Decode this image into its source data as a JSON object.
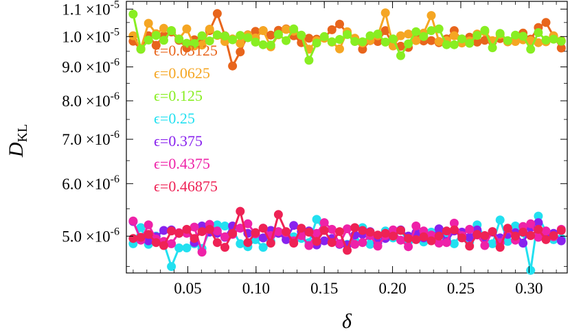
{
  "chart_data": {
    "type": "line",
    "title": "",
    "xlabel": "δ",
    "ylabel": "D",
    "ylabel_sub": "KL",
    "yscale": "log",
    "xlim": [
      0.005,
      0.328
    ],
    "ylim": [
      4.4e-06,
      1.13e-05
    ],
    "x_ticks": [
      {
        "value": 0.05,
        "label": "0.05"
      },
      {
        "value": 0.1,
        "label": "0.10"
      },
      {
        "value": 0.15,
        "label": "0.15"
      },
      {
        "value": 0.2,
        "label": "0.20"
      },
      {
        "value": 0.25,
        "label": "0.25"
      },
      {
        "value": 0.3,
        "label": "0.30"
      }
    ],
    "y_ticks": [
      {
        "value": 5e-06,
        "mantissa": "5.0",
        "exp": "-6"
      },
      {
        "value": 6e-06,
        "mantissa": "6.0",
        "exp": "-6"
      },
      {
        "value": 7e-06,
        "mantissa": "7.0",
        "exp": "-6"
      },
      {
        "value": 8e-06,
        "mantissa": "8.0",
        "exp": "-6"
      },
      {
        "value": 9e-06,
        "mantissa": "9.0",
        "exp": "-6"
      },
      {
        "value": 1e-05,
        "mantissa": "1.0",
        "exp": "-5"
      },
      {
        "value": 1.1e-05,
        "mantissa": "1.1",
        "exp": "-5"
      }
    ],
    "times_sign": "×10",
    "legend_position": "left, upper-middle",
    "x": [
      0.01,
      0.0156,
      0.0212,
      0.0268,
      0.0324,
      0.038,
      0.0436,
      0.0492,
      0.0548,
      0.0604,
      0.066,
      0.0716,
      0.0772,
      0.0828,
      0.0884,
      0.094,
      0.0996,
      0.1052,
      0.1108,
      0.1164,
      0.122,
      0.1276,
      0.1332,
      0.1388,
      0.1444,
      0.15,
      0.1556,
      0.1612,
      0.1668,
      0.1724,
      0.178,
      0.1836,
      0.1892,
      0.1948,
      0.2004,
      0.206,
      0.2116,
      0.2172,
      0.2228,
      0.2284,
      0.234,
      0.2396,
      0.2452,
      0.2508,
      0.2564,
      0.262,
      0.2676,
      0.2732,
      0.2788,
      0.2844,
      0.29,
      0.2956,
      0.3012,
      0.3068,
      0.3124,
      0.318,
      0.3236
    ],
    "series": [
      {
        "name": "ϵ=0.03125",
        "color": "#e8651c",
        "values": [
          9.84e-06,
          9.57e-06,
          1.003e-05,
          9.7e-06,
          1.003e-05,
          1.016e-05,
          9.87e-06,
          9.61e-06,
          9.89e-06,
          9.88e-06,
          1.021e-05,
          1.083e-05,
          1.003e-05,
          9.03e-06,
          9.48e-06,
          1.006e-05,
          1.018e-05,
          1.021e-05,
          1.005e-05,
          1.022e-05,
          1.027e-05,
          1.003e-05,
          9.79e-06,
          9.94e-06,
          9.91e-06,
          9.97e-06,
          1.024e-05,
          1.044e-05,
          1.012e-05,
          9.93e-06,
          9.57e-06,
          9.86e-06,
          9.83e-06,
          1.021e-05,
          9.71e-06,
          9.67e-06,
          9.63e-06,
          9.95e-06,
          9.85e-06,
          9.86e-06,
          9.79e-06,
          9.92e-06,
          1.021e-05,
          9.88e-06,
          9.98e-06,
          9.81e-06,
          9.87e-06,
          9.82e-06,
          9.93e-06,
          9.82e-06,
          9.85e-06,
          1.012e-05,
          9.91e-06,
          1.032e-05,
          1.05e-05,
          1.001e-05,
          9.61e-06
        ]
      },
      {
        "name": "ϵ=0.0625",
        "color": "#f5a623",
        "values": [
          1.003e-05,
          9.59e-06,
          1.047e-05,
          1.01e-05,
          1.029e-05,
          1.021e-05,
          9.92e-06,
          1.027e-05,
          9.68e-06,
          9.71e-06,
          1.026e-05,
          1.004e-05,
          9.83e-06,
          9.92e-06,
          9.77e-06,
          1.005e-05,
          9.95e-06,
          1.021e-05,
          9.65e-06,
          1.006e-05,
          1.025e-05,
          1.019e-05,
          1.004e-05,
          9.57e-06,
          9.86e-06,
          9.94e-06,
          9.81e-06,
          9.58e-06,
          1.017e-05,
          9.94e-06,
          9.78e-06,
          9.87e-06,
          1.003e-05,
          1.086e-05,
          9.68e-06,
          1.003e-05,
          1.009e-05,
          9.86e-06,
          1.012e-05,
          1.076e-05,
          9.83e-06,
          9.86e-06,
          1.003e-05,
          9.78e-06,
          9.85e-06,
          1.009e-05,
          1.017e-05,
          9.86e-06,
          1.007e-05,
          9.82e-06,
          9.83e-06,
          9.89e-06,
          9.86e-06,
          9.79e-06,
          9.82e-06,
          1.003e-05,
          9.86e-06
        ]
      },
      {
        "name": "ϵ=0.125",
        "color": "#88ee22",
        "values": [
          1.081e-05,
          9.57e-06,
          9.88e-06,
          1.004e-05,
          9.87e-06,
          1.021e-05,
          9.91e-06,
          9.77e-06,
          9.76e-06,
          1.003e-05,
          9.85e-06,
          1.006e-05,
          1.002e-05,
          9.89e-06,
          1.004e-05,
          9.96e-06,
          9.81e-06,
          9.72e-06,
          9.71e-06,
          1.008e-05,
          9.86e-06,
          1.027e-05,
          1.005e-05,
          9.21e-06,
          9.78e-06,
          1e-05,
          9.82e-06,
          9.9e-06,
          1.007e-05,
          9.83e-06,
          9.82e-06,
          1.003e-05,
          1.009e-05,
          9.81e-06,
          9.92e-06,
          9.36e-06,
          9.75e-06,
          1.017e-05,
          1e-05,
          1.021e-05,
          1.027e-05,
          9.72e-06,
          9.72e-06,
          9.92e-06,
          9.77e-06,
          1.004e-05,
          1.022e-05,
          9.62e-06,
          1.011e-05,
          9.86e-06,
          1.005e-05,
          1.001e-05,
          9.57e-06,
          1.014e-05,
          9.88e-06,
          9.91e-06,
          9.84e-06
        ]
      },
      {
        "name": "ϵ=0.25",
        "color": "#22e0f0",
        "values": [
          4.87e-06,
          5.15e-06,
          4.86e-06,
          5e-06,
          4.88e-06,
          4.5e-06,
          4.8e-06,
          4.8e-06,
          4.87e-06,
          4.79e-06,
          5.09e-06,
          5.2e-06,
          5.18e-06,
          5.12e-06,
          4.87e-06,
          4.82e-06,
          4.94e-06,
          4.81e-06,
          4.91e-06,
          5.08e-06,
          5.01e-06,
          4.99e-06,
          4.96e-06,
          4.89e-06,
          5.3e-06,
          5.1e-06,
          4.9e-06,
          4.86e-06,
          4.86e-06,
          4.93e-06,
          5.15e-06,
          4.86e-06,
          4.95e-06,
          5.09e-06,
          4.97e-06,
          5.1e-06,
          4.9e-06,
          5.06e-06,
          4.9e-06,
          5.07e-06,
          5.12e-06,
          4.96e-06,
          4.87e-06,
          5.05e-06,
          4.9e-06,
          5.2e-06,
          4.98e-06,
          4.87e-06,
          5.29e-06,
          4.91e-06,
          5.18e-06,
          5.06e-06,
          4.44e-06,
          5.36e-06,
          5.08e-06,
          4.94e-06,
          4.96e-06
        ]
      },
      {
        "name": "ϵ=0.375",
        "color": "#8822ee",
        "values": [
          5.26e-06,
          4.94e-06,
          4.92e-06,
          4.99e-06,
          5.1e-06,
          5.11e-06,
          5.05e-06,
          5.11e-06,
          4.89e-06,
          5.18e-06,
          5.07e-06,
          5.05e-06,
          4.98e-06,
          5.18e-06,
          5.14e-06,
          5.05e-06,
          5.06e-06,
          4.97e-06,
          5.1e-06,
          5.05e-06,
          4.94e-06,
          5.19e-06,
          5.08e-06,
          5.09e-06,
          4.85e-06,
          4.92e-06,
          4.96e-06,
          4.86e-06,
          4.85e-06,
          5.02e-06,
          5.03e-06,
          5.08e-06,
          4.89e-06,
          4.96e-06,
          5.04e-06,
          5.11e-06,
          5e-06,
          5.06e-06,
          4.97e-06,
          4.97e-06,
          5.13e-06,
          4.91e-06,
          5.09e-06,
          5.07e-06,
          4.98e-06,
          5.11e-06,
          4.98e-06,
          5.07e-06,
          4.97e-06,
          5.03e-06,
          5.06e-06,
          4.88e-06,
          5.15e-06,
          5.24e-06,
          4.98e-06,
          5.05e-06,
          4.92e-06
        ]
      },
      {
        "name": "ϵ=0.4375",
        "color": "#ee22a8",
        "values": [
          5.27e-06,
          4.93e-06,
          5.2e-06,
          4.95e-06,
          4.91e-06,
          4.87e-06,
          5.06e-06,
          5.05e-06,
          5.16e-06,
          4.73e-06,
          5.21e-06,
          5.09e-06,
          4.99e-06,
          5.03e-06,
          5.14e-06,
          5.22e-06,
          5.04e-06,
          5.14e-06,
          5.01e-06,
          5.08e-06,
          5.06e-06,
          4.92e-06,
          5.01e-06,
          4.84e-06,
          5.05e-06,
          5.24e-06,
          5.12e-06,
          4.87e-06,
          5.13e-06,
          4.86e-06,
          4.89e-06,
          5.01e-06,
          4.83e-06,
          5.01e-06,
          5.11e-06,
          4.93e-06,
          4.82e-06,
          5.18e-06,
          5.09e-06,
          5.02e-06,
          4.88e-06,
          4.89e-06,
          5.23e-06,
          5.01e-06,
          5.12e-06,
          5.02e-06,
          4.84e-06,
          5.08e-06,
          4.89e-06,
          5.13e-06,
          4.93e-06,
          5.17e-06,
          5.22e-06,
          4.98e-06,
          5.09e-06,
          4.99e-06,
          5.12e-06
        ]
      },
      {
        "name": "ϵ=0.46875",
        "color": "#ee2255",
        "values": [
          4.96e-06,
          4.98e-06,
          5.03e-06,
          4.89e-06,
          4.84e-06,
          5.09e-06,
          5.05e-06,
          5.12e-06,
          4.96e-06,
          5.08e-06,
          5.12e-06,
          4.89e-06,
          4.81e-06,
          5.05e-06,
          5.45e-06,
          4.89e-06,
          5.06e-06,
          5.14e-06,
          4.88e-06,
          5.39e-06,
          5.08e-06,
          4.88e-06,
          5.14e-06,
          5.07e-06,
          4.91e-06,
          5.1e-06,
          4.89e-06,
          5.08e-06,
          4.76e-06,
          5.15e-06,
          5.1e-06,
          5.07e-06,
          5.02e-06,
          5.05e-06,
          5e-06,
          5.1e-06,
          4.96e-06,
          4.94e-06,
          4.99e-06,
          4.92e-06,
          5e-06,
          5.09e-06,
          5.11e-06,
          4.97e-06,
          4.83e-06,
          5.03e-06,
          5.01e-06,
          5.08e-06,
          4.81e-06,
          5.14e-06,
          5e-06,
          5.07e-06,
          5.01e-06,
          5.12e-06,
          4.94e-06,
          5.01e-06,
          5.1e-06
        ]
      }
    ]
  }
}
